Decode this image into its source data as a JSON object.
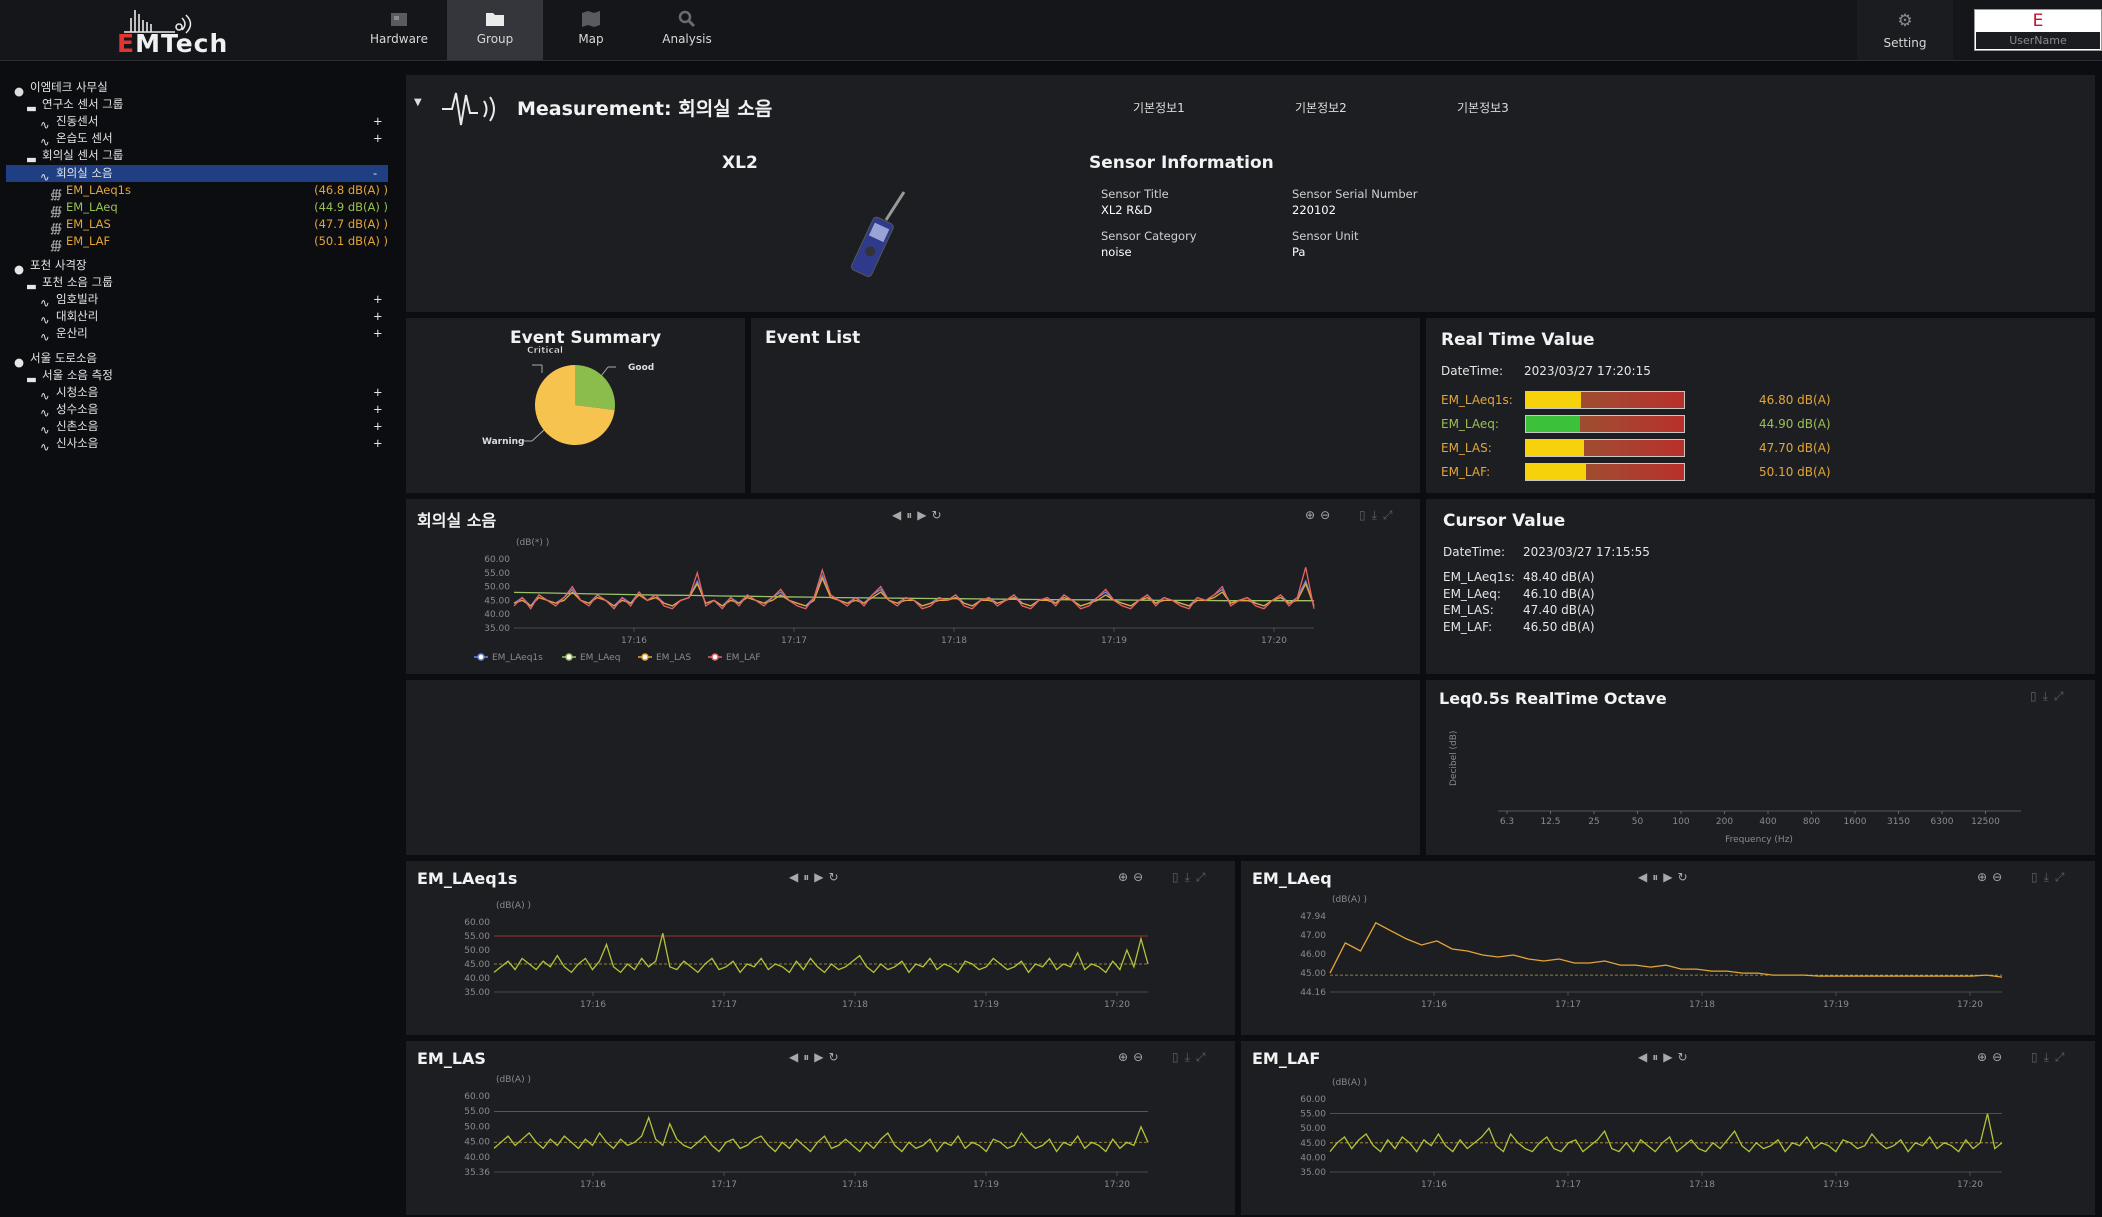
{
  "app": {
    "logo_text_red": "E",
    "logo_text_rest": "MTech"
  },
  "topnav": {
    "items": [
      {
        "label": "Hardware",
        "icon": "hardware-icon"
      },
      {
        "label": "Group",
        "icon": "folder-icon",
        "active": true
      },
      {
        "label": "Map",
        "icon": "map-icon"
      },
      {
        "label": "Analysis",
        "icon": "analysis-icon"
      }
    ],
    "setting_label": "Setting",
    "user_initial": "E",
    "user_name": "UserName"
  },
  "sidebar": {
    "sites": [
      {
        "label": "이엠테크 사무실"
      },
      {
        "label": "포천 사격장"
      },
      {
        "label": "서울 도로소음"
      }
    ],
    "groups": [
      "연구소 센서 그룹",
      "회의실 센서 그룹",
      "포천 소음 그룹",
      "서울 소음 측정"
    ],
    "sensors": [
      "진동센서",
      "온습도 센서",
      "회의실 소음",
      "임호빌라",
      "대회산리",
      "운산리",
      "시청소음",
      "성수소음",
      "신촌소음",
      "신사소음"
    ],
    "channels": [
      {
        "label": "EM_LAeq1s",
        "value": "(46.8 dB(A) )"
      },
      {
        "label": "EM_LAeq",
        "value": "(44.9 dB(A) )"
      },
      {
        "label": "EM_LAS",
        "value": "(47.7 dB(A) )"
      },
      {
        "label": "EM_LAF",
        "value": "(50.1 dB(A) )"
      }
    ],
    "expand": "+",
    "collapse": "-"
  },
  "measurement": {
    "title": "Measurement: 회의실 소음",
    "tabs": [
      "기본정보1",
      "기본정보2",
      "기본정보3"
    ],
    "device_name": "XL2",
    "sensor_info_title": "Sensor Information",
    "fields": [
      {
        "label": "Sensor Title",
        "value": "XL2 R&D"
      },
      {
        "label": "Sensor Serial Number",
        "value": "220102"
      },
      {
        "label": "Sensor Category",
        "value": "noise"
      },
      {
        "label": "Sensor Unit",
        "value": "Pa"
      }
    ]
  },
  "event_summary": {
    "title": "Event Summary",
    "labels": [
      "Critical",
      "Good",
      "Warning"
    ]
  },
  "event_list": {
    "title": "Event List"
  },
  "realtime": {
    "title": "Real Time Value",
    "datetime_label": "DateTime:",
    "datetime": "2023/03/27 17:20:15",
    "rows": [
      {
        "label": "EM_LAeq1s:",
        "value": "46.80 dB(A)",
        "color": "#e3a537",
        "fill": "#f6d20a",
        "level": 0.35
      },
      {
        "label": "EM_LAeq:",
        "value": "44.90 dB(A)",
        "color": "#9bbf56",
        "fill": "#3cc13b",
        "level": 0.34
      },
      {
        "label": "EM_LAS:",
        "value": "47.70 dB(A)",
        "color": "#e3a537",
        "fill": "#f6d20a",
        "level": 0.37
      },
      {
        "label": "EM_LAF:",
        "value": "50.10 dB(A)",
        "color": "#e3a537",
        "fill": "#f6d20a",
        "level": 0.38
      }
    ]
  },
  "cursor": {
    "title": "Cursor Value",
    "datetime_label": "DateTime:",
    "datetime": "2023/03/27 17:15:55",
    "rows": [
      {
        "label": "EM_LAeq1s:",
        "value": "48.40 dB(A)"
      },
      {
        "label": "EM_LAeq:",
        "value": "46.10 dB(A)"
      },
      {
        "label": "EM_LAS:",
        "value": "47.40 dB(A)"
      },
      {
        "label": "EM_LAF:",
        "value": "46.50 dB(A)"
      }
    ]
  },
  "octave": {
    "title": "Leq0.5s RealTime Octave",
    "ylabel": "Decibel (dB)",
    "xlabel": "Frequency (Hz)",
    "ticks": [
      "6.3",
      "12.5",
      "25",
      "50",
      "100",
      "200",
      "400",
      "800",
      "1600",
      "3150",
      "6300",
      "12500"
    ]
  },
  "chart_data": [
    {
      "type": "line",
      "title": "회의실 소음",
      "ylabel": "(dB(*) )",
      "ylim": [
        35,
        60
      ],
      "yticks": [
        "60.00",
        "55.00",
        "50.00",
        "45.00",
        "40.00",
        "35.00"
      ],
      "xticks": [
        "17:16",
        "17:17",
        "17:18",
        "17:19",
        "17:20"
      ],
      "series": [
        {
          "name": "EM_LAeq1s",
          "color": "#6f86d6",
          "values": [
            44,
            46,
            43,
            47,
            45,
            44,
            46,
            49,
            45,
            44,
            47,
            45,
            43,
            46,
            44,
            48,
            45,
            47,
            44,
            43,
            45,
            46,
            52,
            44,
            45,
            43,
            46,
            44,
            47,
            45,
            44,
            46,
            48,
            45,
            44,
            43,
            46,
            54,
            47,
            45,
            44,
            46,
            44,
            47,
            49,
            45,
            44,
            46,
            45,
            43,
            44,
            46,
            45,
            47,
            44,
            43,
            45,
            46,
            44,
            45,
            47,
            44,
            43,
            45,
            46,
            44,
            47,
            45,
            43,
            44,
            46,
            48,
            45,
            44,
            43,
            45,
            47,
            44,
            46,
            45,
            44,
            43,
            46,
            45,
            47,
            49,
            44,
            45,
            46,
            44,
            43,
            45,
            47,
            44,
            46,
            52,
            43
          ]
        },
        {
          "name": "EM_LAeq",
          "color": "#9bc46a",
          "values": [
            47.9,
            47.7,
            47.5,
            47.3,
            47.1,
            46.9,
            46.8,
            46.6,
            46.5,
            46.3,
            46.2,
            46.0,
            45.9,
            45.8,
            45.7,
            45.6,
            45.5,
            45.4,
            45.3,
            45.2,
            45.2,
            45.1,
            45.0,
            45.0,
            44.9,
            44.9,
            44.9,
            44.9
          ]
        },
        {
          "name": "EM_LAS",
          "color": "#e3a537",
          "values": [
            44,
            45,
            43,
            46,
            45,
            44,
            45,
            48,
            45,
            44,
            46,
            45,
            43,
            45,
            44,
            47,
            45,
            46,
            44,
            43,
            45,
            46,
            51,
            44,
            45,
            43,
            45,
            44,
            46,
            45,
            44,
            45,
            47,
            45,
            44,
            43,
            45,
            53,
            46,
            45,
            44,
            45,
            44,
            46,
            48,
            45,
            44,
            45,
            45,
            43,
            44,
            45,
            45,
            46,
            44,
            43,
            45,
            45,
            44,
            45,
            46,
            44,
            43,
            45,
            45,
            44,
            46,
            45,
            43,
            44,
            45,
            47,
            45,
            44,
            43,
            45,
            46,
            44,
            45,
            45,
            44,
            43,
            45,
            45,
            46,
            48,
            44,
            45,
            45,
            44,
            43,
            45,
            46,
            44,
            45,
            51,
            43
          ]
        },
        {
          "name": "EM_LAF",
          "color": "#e56464",
          "values": [
            43,
            46,
            42,
            47,
            45,
            43,
            46,
            50,
            45,
            43,
            47,
            45,
            42,
            46,
            43,
            48,
            45,
            47,
            43,
            42,
            45,
            46,
            55,
            43,
            45,
            42,
            46,
            43,
            47,
            45,
            43,
            46,
            49,
            45,
            43,
            42,
            46,
            56,
            47,
            45,
            43,
            46,
            43,
            47,
            50,
            45,
            43,
            46,
            45,
            42,
            43,
            46,
            45,
            47,
            43,
            42,
            45,
            46,
            43,
            45,
            47,
            43,
            42,
            45,
            46,
            43,
            47,
            45,
            42,
            43,
            46,
            49,
            45,
            43,
            42,
            45,
            47,
            43,
            46,
            45,
            43,
            42,
            46,
            45,
            47,
            50,
            43,
            45,
            46,
            43,
            42,
            45,
            47,
            43,
            46,
            57,
            42
          ]
        }
      ]
    },
    {
      "type": "line",
      "title": "EM_LAeq1s",
      "ylabel": "(dB(A) )",
      "ylim": [
        35,
        60
      ],
      "yticks": [
        "60.00",
        "55.00",
        "50.00",
        "45.00",
        "40.00",
        "35.00"
      ],
      "xticks": [
        "17:16",
        "17:17",
        "17:18",
        "17:19",
        "17:20"
      ],
      "thresholds": [
        55,
        45
      ],
      "series": [
        {
          "name": "EM_LAeq1s",
          "color": "#b6c13a",
          "values": [
            42,
            44,
            46,
            43,
            47,
            45,
            43,
            46,
            44,
            48,
            44,
            42,
            45,
            47,
            43,
            46,
            52,
            44,
            42,
            45,
            43,
            47,
            44,
            46,
            56,
            44,
            43,
            46,
            44,
            42,
            45,
            47,
            43,
            44,
            46,
            42,
            45,
            44,
            47,
            43,
            45,
            44,
            42,
            46,
            43,
            47,
            44,
            42,
            45,
            43,
            44,
            46,
            48,
            44,
            42,
            45,
            43,
            44,
            46,
            42,
            45,
            44,
            47,
            43,
            45,
            44,
            42,
            46,
            45,
            43,
            44,
            47,
            45,
            43,
            44,
            46,
            42,
            45,
            44,
            47,
            43,
            45,
            44,
            49,
            43,
            45,
            44,
            42,
            46,
            43,
            50,
            44,
            54,
            45
          ]
        }
      ]
    },
    {
      "type": "line",
      "title": "EM_LAeq",
      "ylabel": "(dB(A) )",
      "ylim": [
        44.16,
        47.94
      ],
      "yticks": [
        "47.94",
        "47.00",
        "46.00",
        "45.00",
        "44.16"
      ],
      "xticks": [
        "17:16",
        "17:17",
        "17:18",
        "17:19",
        "17:20"
      ],
      "thresholds": [
        45
      ],
      "series": [
        {
          "name": "EM_LAeq",
          "color": "#e3a537",
          "values": [
            45.1,
            46.6,
            46.2,
            47.6,
            47.2,
            46.8,
            46.5,
            46.7,
            46.3,
            46.2,
            46.0,
            45.9,
            46.0,
            45.8,
            45.7,
            45.8,
            45.6,
            45.6,
            45.7,
            45.5,
            45.5,
            45.4,
            45.5,
            45.3,
            45.3,
            45.2,
            45.2,
            45.1,
            45.1,
            45.0,
            45.0,
            45.0,
            44.95,
            44.95,
            44.95,
            44.95,
            44.95,
            44.95,
            44.95,
            44.95,
            44.95,
            44.95,
            44.95,
            45.0,
            44.9
          ]
        }
      ]
    },
    {
      "type": "line",
      "title": "EM_LAS",
      "ylabel": "(dB(A) )",
      "ylim": [
        35.36,
        60
      ],
      "yticks": [
        "60.00",
        "55.00",
        "50.00",
        "45.00",
        "40.00",
        "35.36"
      ],
      "xticks": [
        "17:16",
        "17:17",
        "17:18",
        "17:19",
        "17:20"
      ],
      "thresholds": [
        55,
        45
      ],
      "series": [
        {
          "name": "EM_LAS",
          "color": "#b6c13a",
          "values": [
            43,
            45,
            47,
            44,
            46,
            48,
            45,
            43,
            46,
            44,
            47,
            45,
            43,
            46,
            44,
            48,
            45,
            43,
            46,
            44,
            45,
            47,
            53,
            46,
            44,
            51,
            46,
            44,
            43,
            45,
            47,
            44,
            42,
            45,
            46,
            43,
            44,
            46,
            47,
            44,
            42,
            45,
            43,
            46,
            44,
            42,
            45,
            47,
            43,
            44,
            46,
            44,
            42,
            45,
            43,
            46,
            48,
            44,
            42,
            45,
            43,
            44,
            46,
            42,
            45,
            44,
            47,
            43,
            45,
            44,
            42,
            46,
            45,
            43,
            44,
            48,
            45,
            43,
            44,
            46,
            42,
            45,
            44,
            47,
            43,
            45,
            44,
            42,
            46,
            43,
            45,
            44,
            50,
            45
          ]
        }
      ]
    },
    {
      "type": "line",
      "title": "EM_LAF",
      "ylabel": "(dB(A) )",
      "ylim": [
        35,
        60
      ],
      "yticks": [
        "60.00",
        "55.00",
        "50.00",
        "45.00",
        "40.00",
        "35.00"
      ],
      "xticks": [
        "17:16",
        "17:17",
        "17:18",
        "17:19",
        "17:20"
      ],
      "thresholds": [
        55,
        45
      ],
      "series": [
        {
          "name": "EM_LAF",
          "color": "#b6c13a",
          "values": [
            42,
            45,
            47,
            43,
            46,
            48,
            44,
            42,
            46,
            43,
            47,
            45,
            42,
            46,
            44,
            48,
            44,
            42,
            46,
            43,
            45,
            47,
            50,
            44,
            42,
            48,
            45,
            43,
            42,
            45,
            47,
            43,
            42,
            45,
            46,
            42,
            44,
            46,
            49,
            43,
            42,
            45,
            42,
            46,
            44,
            42,
            45,
            47,
            42,
            44,
            46,
            43,
            42,
            45,
            43,
            46,
            49,
            44,
            42,
            45,
            43,
            44,
            46,
            42,
            45,
            44,
            47,
            43,
            45,
            44,
            42,
            46,
            45,
            43,
            44,
            48,
            45,
            43,
            44,
            46,
            42,
            45,
            44,
            47,
            43,
            45,
            44,
            42,
            46,
            43,
            45,
            55,
            43,
            45
          ]
        }
      ]
    }
  ],
  "pie": {
    "slices": [
      {
        "name": "Good",
        "value": 0.27,
        "color": "#8bbd4c"
      },
      {
        "name": "Warning",
        "value": 0.73,
        "color": "#f6c44e"
      },
      {
        "name": "Critical",
        "value": 0.0,
        "color": "#e55"
      }
    ]
  }
}
